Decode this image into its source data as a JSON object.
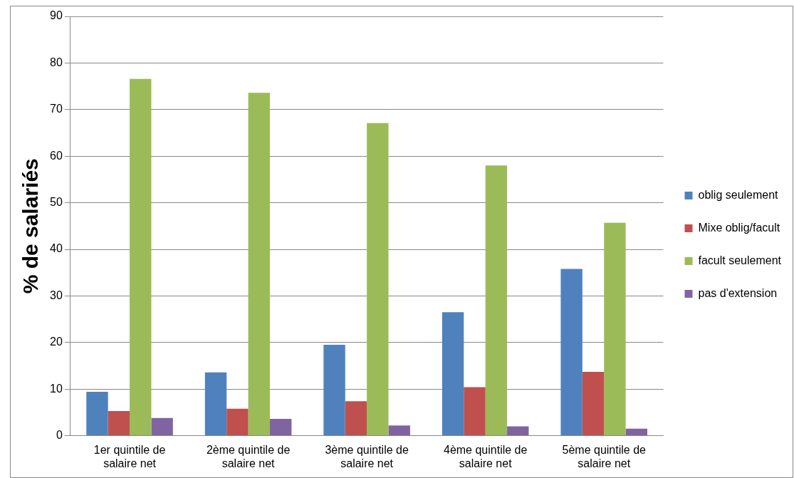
{
  "chart_data": {
    "type": "bar",
    "ylabel": "% de salariés",
    "categories": [
      "1er quintile de salaire net",
      "2ème quintile de salaire net",
      "3ème quintile de salaire net",
      "4ème quintile de salaire net",
      "5ème quintile de salaire net"
    ],
    "series": [
      {
        "name": "oblig seulement",
        "color": "#4f81bd",
        "values": [
          9.4,
          13.6,
          19.5,
          26.5,
          35.8
        ]
      },
      {
        "name": "Mixe oblig/facult",
        "color": "#c0504d",
        "values": [
          5.3,
          5.8,
          7.4,
          10.4,
          13.7
        ]
      },
      {
        "name": "facult seulement",
        "color": "#9bbb59",
        "values": [
          76.6,
          73.6,
          67.1,
          58.0,
          45.7
        ]
      },
      {
        "name": "pas d'extension",
        "color": "#8064a2",
        "values": [
          3.8,
          3.6,
          2.2,
          2.0,
          1.5
        ]
      }
    ],
    "ylim": [
      0,
      90
    ],
    "yticks": [
      0,
      10,
      20,
      30,
      40,
      50,
      60,
      70,
      80,
      90
    ],
    "grid": "y",
    "legend": "right"
  }
}
